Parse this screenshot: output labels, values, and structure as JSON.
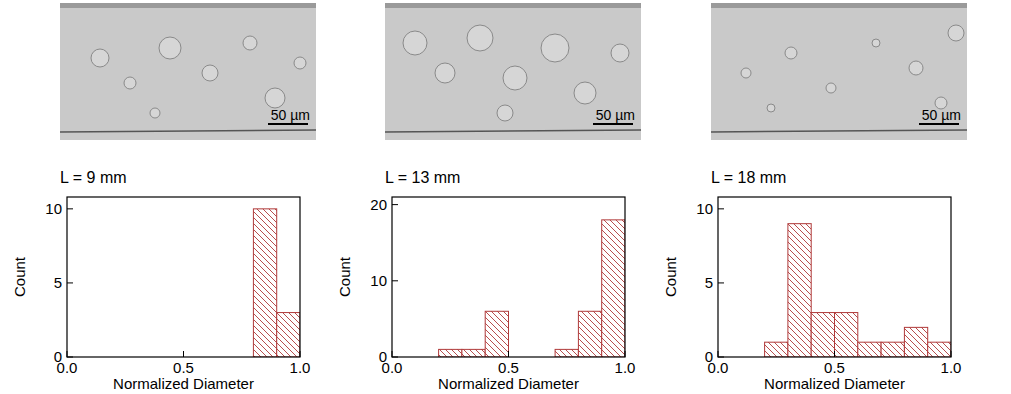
{
  "chart_data": [
    {
      "type": "histogram",
      "title": "L = 9 mm",
      "x_label": "Normalized Diameter",
      "y_label": "Count",
      "annotations": [
        "50 µm"
      ],
      "bins": [
        0,
        0.1,
        0.2,
        0.3,
        0.4,
        0.5,
        0.6,
        0.7,
        0.8,
        0.9,
        1.0
      ],
      "counts": [
        0,
        0,
        0,
        0,
        0,
        0,
        0,
        0,
        10,
        3
      ],
      "color": "#b03a3a",
      "xlim": [
        0,
        1
      ],
      "ylim": [
        0,
        10.8
      ],
      "xticks": [
        {
          "value": 0,
          "label": "0.0"
        },
        {
          "value": 0.5,
          "label": "0.5"
        },
        {
          "value": 1,
          "label": "1.0"
        }
      ],
      "yticks": [
        0,
        5,
        10
      ]
    },
    {
      "type": "histogram",
      "title": "L = 13 mm",
      "x_label": "Normalized Diameter",
      "y_label": "Count",
      "annotations": [
        "50 µm"
      ],
      "bins": [
        0,
        0.1,
        0.2,
        0.3,
        0.4,
        0.5,
        0.6,
        0.7,
        0.8,
        0.9,
        1.0
      ],
      "counts": [
        0,
        0,
        1,
        1,
        6,
        0,
        0,
        1,
        6,
        18
      ],
      "color": "#b03a3a",
      "xlim": [
        0,
        1
      ],
      "ylim": [
        0,
        21
      ],
      "xticks": [
        {
          "value": 0,
          "label": "0.0"
        },
        {
          "value": 0.5,
          "label": "0.5"
        },
        {
          "value": 1,
          "label": "1.0"
        }
      ],
      "yticks": [
        0,
        10,
        20
      ]
    },
    {
      "type": "histogram",
      "title": "L = 18 mm",
      "x_label": "Normalized Diameter",
      "y_label": "Count",
      "annotations": [
        "50 µm"
      ],
      "bins": [
        0,
        0.1,
        0.2,
        0.3,
        0.4,
        0.5,
        0.6,
        0.7,
        0.8,
        0.9,
        1.0
      ],
      "counts": [
        0,
        0,
        1,
        9,
        3,
        3,
        1,
        1,
        2,
        1
      ],
      "color": "#b03a3a",
      "xlim": [
        0,
        1
      ],
      "ylim": [
        0,
        10.8
      ],
      "xticks": [
        {
          "value": 0,
          "label": "0.0"
        },
        {
          "value": 0.5,
          "label": "0.5"
        },
        {
          "value": 1,
          "label": "1.0"
        }
      ],
      "yticks": [
        0,
        5,
        10
      ]
    }
  ]
}
